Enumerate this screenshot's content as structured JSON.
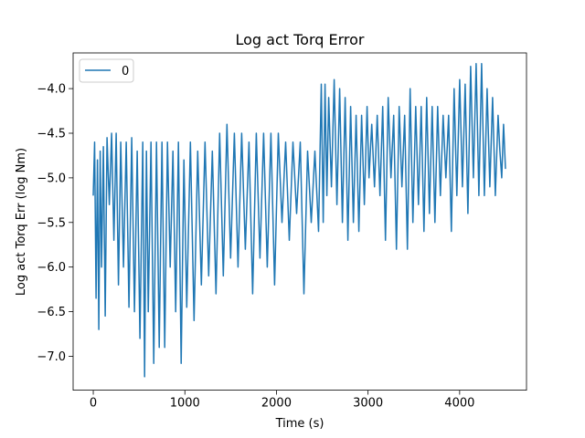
{
  "chart_data": {
    "type": "line",
    "title": "Log act Torq Error",
    "xlabel": "Time (s)",
    "ylabel": "Log act Torq Err (log Nm)",
    "xlim": [
      -220,
      4730
    ],
    "ylim": [
      -7.38,
      -3.6
    ],
    "xticks": [
      0,
      1000,
      2000,
      3000,
      4000
    ],
    "xtick_labels": [
      "0",
      "1000",
      "2000",
      "3000",
      "4000"
    ],
    "yticks": [
      -7.0,
      -6.5,
      -6.0,
      -5.5,
      -5.0,
      -4.5,
      -4.0
    ],
    "ytick_labels": [
      "−7.0",
      "−6.5",
      "−6.0",
      "−5.5",
      "−5.0",
      "−4.5",
      "−4.0"
    ],
    "grid": false,
    "legend": {
      "position": "top-left",
      "entries": [
        "0"
      ]
    },
    "colors": {
      "series": "#1f77b4"
    },
    "series": [
      {
        "name": "0",
        "x": [
          0,
          15,
          30,
          45,
          60,
          75,
          90,
          110,
          130,
          150,
          175,
          200,
          225,
          250,
          275,
          300,
          330,
          360,
          390,
          420,
          450,
          480,
          510,
          540,
          560,
          580,
          600,
          630,
          660,
          690,
          720,
          750,
          780,
          810,
          840,
          870,
          900,
          930,
          960,
          990,
          1020,
          1060,
          1100,
          1140,
          1180,
          1220,
          1260,
          1300,
          1340,
          1380,
          1420,
          1460,
          1500,
          1540,
          1580,
          1620,
          1660,
          1700,
          1740,
          1780,
          1820,
          1860,
          1900,
          1940,
          1980,
          2020,
          2060,
          2100,
          2140,
          2180,
          2220,
          2260,
          2300,
          2340,
          2380,
          2420,
          2460,
          2490,
          2510,
          2530,
          2550,
          2570,
          2600,
          2630,
          2660,
          2690,
          2720,
          2750,
          2780,
          2810,
          2840,
          2870,
          2900,
          2930,
          2960,
          2990,
          3010,
          3040,
          3070,
          3100,
          3130,
          3160,
          3190,
          3220,
          3250,
          3280,
          3310,
          3340,
          3370,
          3400,
          3430,
          3460,
          3490,
          3520,
          3550,
          3580,
          3610,
          3640,
          3670,
          3700,
          3730,
          3760,
          3790,
          3820,
          3850,
          3880,
          3910,
          3940,
          3970,
          4000,
          4030,
          4060,
          4090,
          4120,
          4150,
          4180,
          4210,
          4240,
          4270,
          4300,
          4330,
          4360,
          4390,
          4420,
          4440,
          4460,
          4480,
          4500
        ],
        "values": [
          -5.2,
          -4.6,
          -6.35,
          -4.8,
          -6.7,
          -4.7,
          -6.0,
          -4.65,
          -6.55,
          -4.55,
          -5.3,
          -4.5,
          -5.7,
          -4.5,
          -6.2,
          -4.6,
          -6.0,
          -4.6,
          -6.45,
          -4.55,
          -6.5,
          -4.7,
          -6.8,
          -4.6,
          -7.23,
          -4.7,
          -6.5,
          -4.6,
          -7.08,
          -4.6,
          -6.9,
          -4.6,
          -6.9,
          -4.6,
          -6.0,
          -4.7,
          -6.5,
          -4.6,
          -7.08,
          -4.8,
          -6.45,
          -4.6,
          -6.6,
          -4.7,
          -6.2,
          -4.6,
          -6.1,
          -4.7,
          -6.3,
          -4.5,
          -6.1,
          -4.4,
          -5.9,
          -4.5,
          -6.0,
          -4.5,
          -5.8,
          -4.6,
          -6.3,
          -4.5,
          -5.9,
          -4.5,
          -6.0,
          -4.5,
          -6.2,
          -4.5,
          -5.5,
          -4.6,
          -5.7,
          -4.6,
          -5.4,
          -4.6,
          -6.3,
          -4.7,
          -5.5,
          -4.7,
          -5.6,
          -3.95,
          -5.5,
          -3.95,
          -5.2,
          -4.1,
          -5.1,
          -3.9,
          -5.3,
          -4.0,
          -5.5,
          -4.1,
          -5.7,
          -4.2,
          -5.5,
          -4.3,
          -5.6,
          -4.3,
          -5.3,
          -4.2,
          -5.0,
          -4.4,
          -5.1,
          -4.3,
          -5.2,
          -4.2,
          -5.7,
          -4.1,
          -5.0,
          -4.3,
          -5.8,
          -4.2,
          -5.1,
          -4.3,
          -5.8,
          -4.0,
          -5.5,
          -4.2,
          -5.3,
          -4.2,
          -5.6,
          -4.1,
          -5.4,
          -4.2,
          -5.5,
          -4.2,
          -5.2,
          -4.3,
          -5.0,
          -4.3,
          -5.6,
          -4.0,
          -5.2,
          -3.9,
          -5.1,
          -3.95,
          -5.4,
          -3.75,
          -5.0,
          -3.72,
          -5.2,
          -3.72,
          -5.2,
          -4.0,
          -5.1,
          -4.1,
          -5.2,
          -4.3,
          -4.7,
          -5.0,
          -4.4,
          -4.9
        ]
      }
    ]
  }
}
